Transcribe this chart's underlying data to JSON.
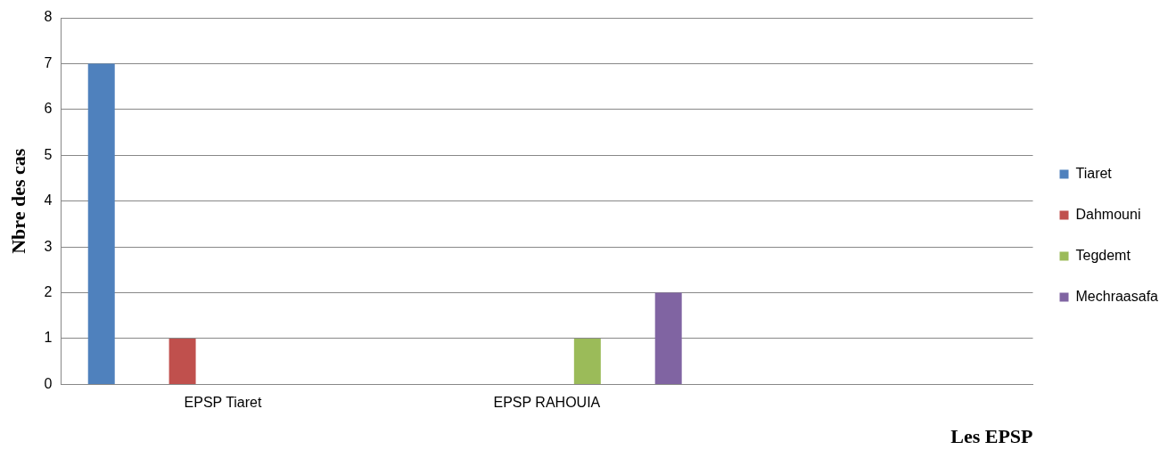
{
  "chart_data": {
    "type": "bar",
    "ylabel": "Nbre des cas",
    "xlabel": "Les EPSP",
    "categories": [
      "EPSP Tiaret",
      "EPSP RAHOUIA",
      null
    ],
    "series": [
      {
        "name": "Tiaret",
        "color": "#4f81bd",
        "values": [
          7,
          0,
          null
        ]
      },
      {
        "name": "Dahmouni",
        "color": "#c0504d",
        "values": [
          1,
          0,
          null
        ]
      },
      {
        "name": "Tegdemt",
        "color": "#9bbb59",
        "values": [
          0,
          1,
          null
        ]
      },
      {
        "name": "Mechraasafa",
        "color": "#8064a2",
        "values": [
          0,
          2,
          null
        ]
      }
    ],
    "ylim": [
      0,
      8
    ],
    "yticks": [
      0,
      1,
      2,
      3,
      4,
      5,
      6,
      7,
      8
    ],
    "grid": "y",
    "legend": "right"
  }
}
